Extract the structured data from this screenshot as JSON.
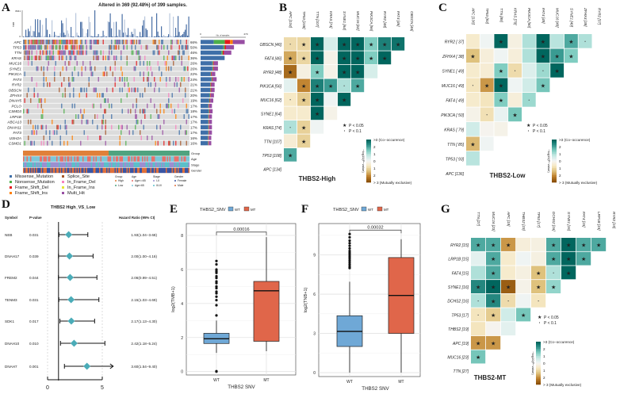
{
  "panel_labels": [
    "A",
    "B",
    "C",
    "D",
    "E",
    "F",
    "G"
  ],
  "colors": {
    "Missense_Mutation": "#3f6fa8",
    "Nonsense_Mutation": "#4daf4a",
    "Frame_Shift_Del": "#e41a1c",
    "Frame_Shift_Ins": "#ff7f00",
    "Splice_Site": "#a65628",
    "In_Frame_Del": "#f781bf",
    "In_Frame_Ins": "#e6e633",
    "Multi_Hit": "#984ea3",
    "WT": "#6fa8d6",
    "MT": "#e0664a",
    "high": "#e0803a",
    "low": "#4fa37f",
    "co_occurrence": "#01665e",
    "mutually_exclusive": "#8c510a",
    "forest_marker": "#4bacb8"
  },
  "chart_data": [
    {
      "panel": "A",
      "type": "heatmap",
      "title": "Altered in 369 (92.48%) of 399 samples.",
      "top_axis_label": "TMB",
      "top_axis_ticks": [
        "0",
        "8041"
      ],
      "bar_axis_label": "No. of samples",
      "bar_axis_ticks": [
        "0",
        "270"
      ],
      "bar_axis_max": 270,
      "total_samples": 399,
      "genes": [
        "APC",
        "TP53",
        "TTN",
        "KRAS",
        "MUC16",
        "SYNE1",
        "PIK3CA",
        "FAT4",
        "RYR2",
        "OBSCN",
        "ZFHX4",
        "DNAH5",
        "PCLO",
        "CSMD3",
        "LRP1B",
        "ABCA13",
        "DNAH11",
        "FAT3",
        "USH2A",
        "CSMD1"
      ],
      "percents": [
        "66%",
        "50%",
        "46%",
        "36%",
        "26%",
        "26%",
        "22%",
        "24%",
        "21%",
        "21%",
        "20%",
        "19%",
        "17%",
        "18%",
        "17%",
        "17%",
        "17%",
        "17%",
        "16%",
        "16%"
      ],
      "annotation_tracks": [
        "Group",
        "Age",
        "Stage",
        "Gender"
      ],
      "mutation_legend": [
        "Missense_Mutation",
        "Nonsense_Mutation",
        "Frame_Shift_Del",
        "Frame_Shift_Ins",
        "Splice_Site",
        "In_Frame_Del",
        "In_Frame_Ins",
        "Multi_Hit"
      ],
      "annotation_legend": [
        {
          "title": "Group",
          "items": [
            {
              "label": "High",
              "color": "#e0803a"
            },
            {
              "label": "Low",
              "color": "#4fa37f"
            }
          ]
        },
        {
          "title": "Age",
          "items": [
            {
              "label": "Age<=65",
              "color": "#e8706a"
            },
            {
              "label": "Age>65",
              "color": "#7cc7d8"
            }
          ]
        },
        {
          "title": "Stage",
          "items": [
            {
              "label": "I-II",
              "color": "#9b8fd0"
            },
            {
              "label": "III-IV",
              "color": "#5bbfc9"
            }
          ]
        },
        {
          "title": "Gender",
          "items": [
            {
              "label": "Female",
              "color": "#3a55a4"
            },
            {
              "label": "Male",
              "color": "#e0703a"
            }
          ]
        }
      ]
    },
    {
      "panel": "B",
      "type": "heatmap",
      "title": "THBS2-High",
      "rows": [
        "OBSCN [46]",
        "FAT4 [46]",
        "RYR2 [48]",
        "PIK3CA [56]",
        "MUC16 [62]",
        "SYNE1 [64]",
        "KRAS [74]",
        "TTN [107]",
        "TP53 [108]",
        "APC [134]"
      ],
      "columns": [
        "APC [134]",
        "TP53 [108]",
        "TTN [107]",
        "KRAS [74]",
        "SYNE1 [64]",
        "MUC16 [62]",
        "PIK3CA [56]",
        "RYR2 [48]",
        "FAT4 [46]",
        "OBSCN [46]"
      ],
      "values": [
        [
          [
            -1,
            "."
          ],
          [
            -1.1,
            "*"
          ],
          [
            3,
            "*"
          ],
          [
            0.5,
            ""
          ],
          [
            3,
            "*"
          ],
          [
            3,
            "*"
          ],
          [
            1.5,
            "*"
          ],
          [
            2.6,
            "*"
          ],
          [
            2.8,
            "*"
          ]
        ],
        [
          [
            -1.8,
            "*"
          ],
          [
            -1.1,
            "*"
          ],
          [
            3,
            "*"
          ],
          [
            -0.2,
            ""
          ],
          [
            3,
            "*"
          ],
          [
            3,
            "*"
          ],
          [
            1.5,
            "*"
          ],
          [
            3,
            "*"
          ]
        ],
        [
          [
            -2.6,
            "*"
          ],
          [
            -0.3,
            ""
          ],
          [
            1.5,
            "*"
          ],
          [
            -0.2,
            ""
          ],
          [
            3,
            "*"
          ],
          [
            3,
            "*"
          ],
          [
            0.5,
            ""
          ]
        ],
        [
          [
            0.3,
            ""
          ],
          [
            -2.2,
            "*"
          ],
          [
            2.6,
            "*"
          ],
          [
            2.2,
            "*"
          ],
          [
            1,
            "."
          ],
          [
            2,
            "*"
          ]
        ],
        [
          [
            -0.7,
            "."
          ],
          [
            -1.3,
            "*"
          ],
          [
            3,
            "*"
          ],
          [
            0.1,
            ""
          ],
          [
            3,
            "*"
          ]
        ],
        [
          [
            -0.6,
            ""
          ],
          [
            -0.6,
            ""
          ],
          [
            3,
            "*"
          ],
          [
            -0.2,
            ""
          ]
        ],
        [
          [
            1,
            "."
          ],
          [
            -1.2,
            "*"
          ],
          [
            0.1,
            ""
          ]
        ],
        [
          [
            -0.5,
            ""
          ],
          [
            -1.2,
            "*"
          ]
        ],
        [
          [
            2,
            "*"
          ]
        ],
        []
      ]
    },
    {
      "panel": "C",
      "type": "heatmap",
      "title": "THBS2-Low",
      "rows": [
        "RYR2 [ 37]",
        "ZFHX4 [ 38]",
        "SYNE1 [ 49]",
        "MUC16 [ 49]",
        "FAT4 [ 49]",
        "PIK3CA [ 50]",
        "KRAS [ 79]",
        "TTN [ 85]",
        "TP53 [ 93]",
        "APC [136]"
      ],
      "columns": [
        "APC [136]",
        "TP53 [93]",
        "TTN [85]",
        "KRAS [79]",
        "PIK3CA [50]",
        "FAT4 [49]",
        "MUC16 [49]",
        "SYNE1 [49]",
        "ZFHX4 [38]",
        "RYR2 [37]"
      ],
      "values": [
        [
          [
            -0.6,
            ""
          ],
          [
            0.1,
            ""
          ],
          [
            3,
            "*"
          ],
          [
            -0.3,
            ""
          ],
          [
            1,
            ""
          ],
          [
            3,
            "*"
          ],
          [
            0.9,
            ""
          ],
          [
            2,
            "*"
          ],
          [
            1,
            "."
          ]
        ],
        [
          [
            -1.5,
            "*"
          ],
          [
            -0.4,
            ""
          ],
          [
            0.1,
            ""
          ],
          [
            -0.4,
            ""
          ],
          [
            1,
            ""
          ],
          [
            3,
            "*"
          ],
          [
            2.2,
            "*"
          ],
          [
            1.5,
            "*"
          ]
        ],
        [
          [
            -0.6,
            ""
          ],
          [
            -0.5,
            ""
          ],
          [
            1.5,
            "*"
          ],
          [
            -1,
            "."
          ],
          [
            0.4,
            ""
          ],
          [
            1.2,
            "."
          ],
          [
            3,
            "*"
          ]
        ],
        [
          [
            -0.8,
            "."
          ],
          [
            -2,
            "*"
          ],
          [
            3,
            "*"
          ],
          [
            0.1,
            ""
          ],
          [
            0.6,
            ""
          ],
          [
            1.6,
            "*"
          ]
        ],
        [
          [
            -0.6,
            ""
          ],
          [
            -0.8,
            ""
          ],
          [
            1.5,
            "*"
          ],
          [
            -0.4,
            ""
          ],
          [
            1.2,
            "."
          ]
        ],
        [
          [
            -0.2,
            ""
          ],
          [
            -0.9,
            "."
          ],
          [
            0.2,
            ""
          ],
          [
            1.6,
            "*"
          ]
        ],
        [
          [
            0.6,
            ""
          ],
          [
            -0.1,
            ""
          ],
          [
            -0.2,
            ""
          ]
        ],
        [
          [
            -1.6,
            "*"
          ],
          [
            0.1,
            ""
          ]
        ],
        [
          [
            0.9,
            ""
          ]
        ],
        []
      ]
    },
    {
      "panel": "D",
      "type": "scatter",
      "title": "THBS2  High_VS_Low",
      "headers": [
        "Symbol",
        "P-value",
        "Hazard Ratio (95% CI)"
      ],
      "x_ticks": [
        "0",
        "5"
      ],
      "xlim": [
        0,
        6
      ],
      "reference_line": 1,
      "rows": [
        {
          "symbol": "NEB",
          "p": "0.031",
          "hr": 1.93,
          "lo": 1.04,
          "hi": 3.68,
          "text": "1.93(1.04−3.68)"
        },
        {
          "symbol": "DNAH17",
          "p": "0.039",
          "hr": 2.0,
          "lo": 1.0,
          "hi": 4.16,
          "text": "2.00(1.00−4.16)"
        },
        {
          "symbol": "FREM2",
          "p": "0.044",
          "hr": 2.06,
          "lo": 0.99,
          "hi": 4.51,
          "text": "2.06(0.99−4.51)"
        },
        {
          "symbol": "TENM3",
          "p": "0.031",
          "hr": 2.15,
          "lo": 1.03,
          "hi": 4.69,
          "text": "2.15(1.03−4.69)"
        },
        {
          "symbol": "SDK1",
          "p": "0.017",
          "hr": 2.17,
          "lo": 1.13,
          "hi": 4.3,
          "text": "2.17(1.13−4.30)"
        },
        {
          "symbol": "DNAH10",
          "p": "0.010",
          "hr": 2.42,
          "lo": 1.18,
          "hi": 5.24,
          "text": "2.42(1.18−5.24)"
        },
        {
          "symbol": "DNAH7",
          "p": "0.001",
          "hr": 3.6,
          "lo": 1.54,
          "hi": 9.4,
          "text": "3.60(1.54−9.40)"
        }
      ]
    },
    {
      "panel": "E",
      "type": "box",
      "legend_title": "THBS2_SNV",
      "categories": [
        "WT",
        "MT"
      ],
      "xlabel": "THBS2 SNV",
      "ylabel": "log2(TMB+1)",
      "ylim": [
        -0.2,
        8.7
      ],
      "yticks": [
        0,
        2,
        4,
        6,
        8
      ],
      "p_value": "0.00016",
      "bracket_y": 8.2,
      "boxes": [
        {
          "q1": 1.65,
          "median": 1.93,
          "q3": 2.25,
          "lower": 1.1,
          "upper": 3.0,
          "outliers": [
            0,
            0.02,
            3.3,
            3.9,
            4.2,
            4.4,
            4.6,
            4.7,
            4.9,
            5.0,
            5.2,
            5.3,
            5.5,
            5.6,
            5.8,
            5.9,
            6.0,
            6.3,
            6.5
          ]
        },
        {
          "q1": 1.78,
          "median": 4.75,
          "q3": 5.3,
          "lower": 1.2,
          "upper": 7.9,
          "outliers": []
        }
      ]
    },
    {
      "panel": "F",
      "type": "box",
      "legend_title": "THBS2_SNV",
      "categories": [
        "WT",
        "MT"
      ],
      "xlabel": "THBS2 SNV",
      "ylabel": "log2(TNB+1)",
      "ylim": [
        -0.3,
        11.4
      ],
      "yticks": [
        0,
        3,
        6,
        9
      ],
      "p_value": "0.00032",
      "bracket_y": 10.9,
      "boxes": [
        {
          "q1": 2.0,
          "median": 3.15,
          "q3": 4.35,
          "lower": 0,
          "upper": 6.95,
          "outliers": [
            8.0,
            8.1,
            8.25,
            8.4,
            8.55,
            8.7,
            8.85,
            9.0,
            9.15,
            9.3,
            9.5,
            9.7,
            9.9,
            10.1,
            10.35,
            10.6
          ]
        },
        {
          "q1": 3.0,
          "median": 5.9,
          "q3": 8.8,
          "lower": 0,
          "upper": 10.2,
          "outliers": []
        }
      ]
    },
    {
      "panel": "G",
      "type": "heatmap",
      "title": "THBS2-MT",
      "rows": [
        "RYR2 [15]",
        "LRP1B [15]",
        "FAT4 [15]",
        "SYNE1 [16]",
        "DCHS2 [16]",
        "TP53 [17]",
        "THBS2 [19]",
        "APC [19]",
        "MUC16 [23]",
        "TTN [27]"
      ],
      "columns": [
        "TTN [27]",
        "MUC16 [23]",
        "APC [19]",
        "THBS2 [19]",
        "TP53 [17]",
        "DCHS2 [16]",
        "SYNE1 [16]",
        "FAT4 [15]",
        "LRP1B [15]",
        "RYR2 [15]"
      ],
      "values": [
        [
          [
            2,
            "*"
          ],
          [
            2,
            "*"
          ],
          [
            -2,
            "*"
          ],
          [
            -0.4,
            ""
          ],
          [
            -0.3,
            ""
          ],
          [
            2,
            "*"
          ],
          [
            3,
            "*"
          ],
          [
            2,
            "*"
          ],
          [
            2,
            "*"
          ]
        ],
        [
          [
            0.3,
            ""
          ],
          [
            2,
            "*"
          ],
          [
            -0.6,
            ""
          ],
          [
            0.1,
            ""
          ],
          [
            -0.3,
            ""
          ],
          [
            2,
            "*"
          ],
          [
            3,
            "*"
          ],
          [
            2,
            "*"
          ]
        ],
        [
          [
            1,
            ""
          ],
          [
            2,
            "*"
          ],
          [
            -0.6,
            ""
          ],
          [
            -0.3,
            ""
          ],
          [
            -1.5,
            "*"
          ],
          [
            1,
            "."
          ],
          [
            3,
            "*"
          ]
        ],
        [
          [
            2.5,
            "*"
          ],
          [
            3,
            "*"
          ],
          [
            -2.8,
            "*"
          ],
          [
            -0.2,
            ""
          ],
          [
            -1.5,
            "*"
          ],
          [
            1.3,
            "*"
          ]
        ],
        [
          [
            1,
            "."
          ],
          [
            2.5,
            "*"
          ],
          [
            -1,
            "."
          ],
          [
            0.1,
            ""
          ],
          [
            -0.8,
            "."
          ]
        ],
        [
          [
            -0.8,
            "."
          ],
          [
            -1.3,
            "*"
          ],
          [
            0.6,
            ""
          ],
          [
            1.6,
            "*"
          ]
        ],
        [
          [
            -0.8,
            ""
          ],
          [
            -0.1,
            ""
          ],
          [
            0.3,
            ""
          ]
        ],
        [
          [
            -2,
            "*"
          ],
          [
            -2,
            "*"
          ]
        ],
        [
          [
            1.6,
            "*"
          ]
        ],
        []
      ]
    }
  ],
  "heatmap_legend": {
    "sig_labels": [
      "P < 0.05",
      "P < 0.1"
    ],
    "colorbar_title": "−log10(P−value)",
    "colorbar_labels": [
      ">3 (Co−occurence)",
      "2",
      "1",
      "0",
      "1",
      "2",
      "> 3 (Mutually exclusive)"
    ]
  }
}
